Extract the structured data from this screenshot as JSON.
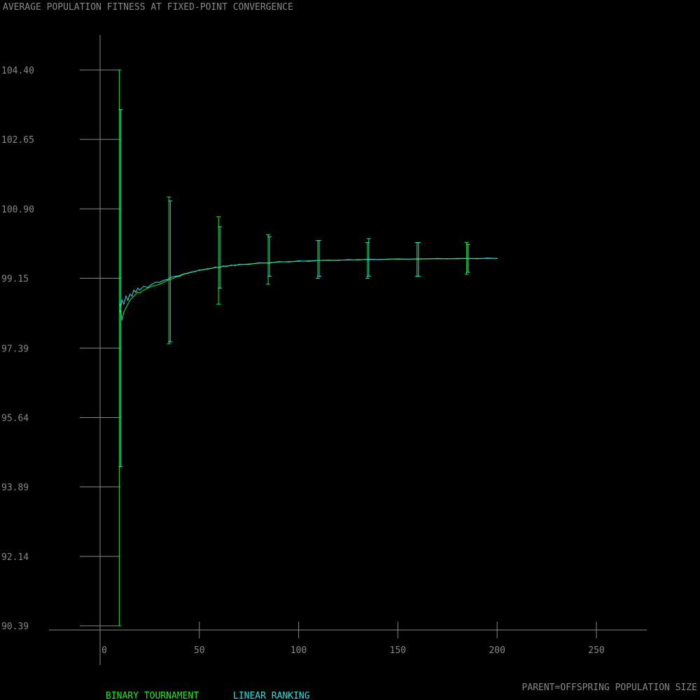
{
  "chart_data": {
    "type": "line",
    "title": "AVERAGE POPULATION FITNESS AT FIXED-POINT CONVERGENCE",
    "xlabel": "PARENT=OFFSPRING POPULATION SIZE",
    "ylabel": "",
    "xlim": [
      0,
      250
    ],
    "ylim": [
      90.39,
      104.4
    ],
    "x_ticks": [
      {
        "value": 0,
        "label": "0"
      },
      {
        "value": 50,
        "label": "50"
      },
      {
        "value": 100,
        "label": "100"
      },
      {
        "value": 150,
        "label": "150"
      },
      {
        "value": 200,
        "label": "200"
      },
      {
        "value": 250,
        "label": "250"
      }
    ],
    "y_ticks": [
      {
        "value": 104.4,
        "label": "104.40"
      },
      {
        "value": 102.65,
        "label": "102.65"
      },
      {
        "value": 100.9,
        "label": "100.90"
      },
      {
        "value": 99.15,
        "label": "99.15"
      },
      {
        "value": 97.39,
        "label": "97.39"
      },
      {
        "value": 95.64,
        "label": "95.64"
      },
      {
        "value": 93.89,
        "label": "93.89"
      },
      {
        "value": 92.14,
        "label": "92.14"
      },
      {
        "value": 90.39,
        "label": "90.39"
      }
    ],
    "grid": false,
    "legend_position": "bottom-left",
    "series": [
      {
        "name": "BINARY TOURNAMENT",
        "color": "#22e822",
        "x": [
          10,
          11,
          12,
          13,
          14,
          15,
          16,
          17,
          18,
          19,
          20,
          22,
          24,
          26,
          28,
          30,
          32,
          34,
          36,
          38,
          40,
          42,
          44,
          46,
          48,
          50,
          52,
          54,
          56,
          58,
          60,
          62,
          64,
          66,
          68,
          70,
          75,
          80,
          85,
          90,
          95,
          100,
          105,
          110,
          115,
          120,
          125,
          130,
          135,
          140,
          145,
          150,
          155,
          160,
          165,
          170,
          175,
          180,
          185,
          190,
          195,
          200
        ],
        "y": [
          98.5,
          98.1,
          98.3,
          98.4,
          98.5,
          98.6,
          98.65,
          98.7,
          98.75,
          98.8,
          98.78,
          98.85,
          98.9,
          98.95,
          98.97,
          99.0,
          99.05,
          99.1,
          99.13,
          99.18,
          99.2,
          99.25,
          99.27,
          99.3,
          99.33,
          99.35,
          99.37,
          99.38,
          99.4,
          99.42,
          99.43,
          99.45,
          99.46,
          99.47,
          99.48,
          99.49,
          99.51,
          99.53,
          99.54,
          99.56,
          99.57,
          99.58,
          99.59,
          99.6,
          99.6,
          99.61,
          99.61,
          99.62,
          99.62,
          99.62,
          99.63,
          99.63,
          99.63,
          99.63,
          99.64,
          99.64,
          99.64,
          99.64,
          99.65,
          99.65,
          99.65,
          99.65
        ],
        "error_bars": [
          {
            "x": 10,
            "low": 90.39,
            "high": 104.4
          },
          {
            "x": 35,
            "low": 97.5,
            "high": 101.2
          },
          {
            "x": 60,
            "low": 98.5,
            "high": 100.7
          },
          {
            "x": 85,
            "low": 99.0,
            "high": 100.25
          },
          {
            "x": 110,
            "low": 99.15,
            "high": 100.1
          },
          {
            "x": 135,
            "low": 99.15,
            "high": 100.05
          },
          {
            "x": 160,
            "low": 99.2,
            "high": 100.05
          },
          {
            "x": 185,
            "low": 99.25,
            "high": 100.05
          }
        ]
      },
      {
        "name": "LINEAR RANKING",
        "color": "#33dddd",
        "x": [
          10,
          11,
          12,
          13,
          14,
          15,
          16,
          17,
          18,
          19,
          20,
          22,
          24,
          26,
          28,
          30,
          32,
          34,
          36,
          38,
          40,
          42,
          44,
          46,
          48,
          50,
          52,
          54,
          56,
          58,
          60,
          62,
          64,
          66,
          68,
          70,
          75,
          80,
          85,
          90,
          95,
          100,
          105,
          110,
          115,
          120,
          125,
          130,
          135,
          140,
          145,
          150,
          155,
          160,
          165,
          170,
          175,
          180,
          185,
          190,
          195,
          200
        ],
        "y": [
          98.3,
          98.6,
          98.5,
          98.7,
          98.6,
          98.75,
          98.7,
          98.85,
          98.8,
          98.9,
          98.85,
          98.95,
          98.92,
          99.0,
          99.05,
          99.05,
          99.1,
          99.12,
          99.18,
          99.2,
          99.22,
          99.26,
          99.28,
          99.31,
          99.32,
          99.36,
          99.36,
          99.39,
          99.4,
          99.43,
          99.42,
          99.46,
          99.45,
          99.48,
          99.47,
          99.5,
          99.5,
          99.54,
          99.53,
          99.57,
          99.56,
          99.59,
          99.58,
          99.6,
          99.61,
          99.6,
          99.62,
          99.61,
          99.63,
          99.62,
          99.63,
          99.64,
          99.63,
          99.64,
          99.64,
          99.65,
          99.64,
          99.65,
          99.65,
          99.64,
          99.66,
          99.65
        ],
        "error_bars": [
          {
            "x": 10,
            "low": 94.4,
            "high": 103.4
          },
          {
            "x": 35,
            "low": 97.55,
            "high": 101.1
          },
          {
            "x": 60,
            "low": 98.9,
            "high": 100.45
          },
          {
            "x": 85,
            "low": 99.2,
            "high": 100.2
          },
          {
            "x": 110,
            "low": 99.2,
            "high": 100.1
          },
          {
            "x": 135,
            "low": 99.2,
            "high": 100.15
          },
          {
            "x": 160,
            "low": 99.2,
            "high": 100.05
          },
          {
            "x": 185,
            "low": 99.3,
            "high": 100.0
          }
        ]
      }
    ]
  }
}
